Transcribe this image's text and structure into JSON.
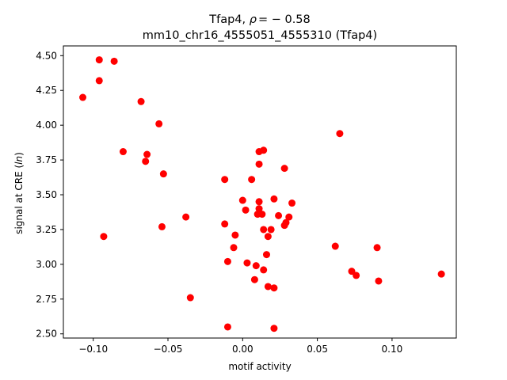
{
  "chart_data": {
    "type": "scatter",
    "title_line1_prefix": "Tfap4, ",
    "title_line1_rho_symbol": "ρ",
    "title_line1_rho_value": "= − 0.58",
    "title_line2": "mm10_chr16_4555051_4555310 (Tfap4)",
    "xlabel": "motif activity",
    "ylabel_prefix": "signal at CRE (",
    "ylabel_italic": "ln",
    "ylabel_suffix": ")",
    "xlim": [
      -0.12,
      0.143
    ],
    "ylim": [
      2.47,
      4.57
    ],
    "xticks": [
      -0.1,
      -0.05,
      0.0,
      0.05,
      0.1
    ],
    "xtick_labels": [
      "−0.10",
      "−0.05",
      "0.00",
      "0.05",
      "0.10"
    ],
    "yticks": [
      2.5,
      2.75,
      3.0,
      3.25,
      3.5,
      3.75,
      4.0,
      4.25,
      4.5
    ],
    "ytick_labels": [
      "2.50",
      "2.75",
      "3.00",
      "3.25",
      "3.50",
      "3.75",
      "4.00",
      "4.25",
      "4.50"
    ],
    "marker_color": "#ff0000",
    "grid": false,
    "points": [
      {
        "x": -0.096,
        "y": 4.47
      },
      {
        "x": -0.086,
        "y": 4.46
      },
      {
        "x": -0.096,
        "y": 4.32
      },
      {
        "x": -0.107,
        "y": 4.2
      },
      {
        "x": -0.068,
        "y": 4.17
      },
      {
        "x": -0.056,
        "y": 4.01
      },
      {
        "x": -0.08,
        "y": 3.81
      },
      {
        "x": -0.064,
        "y": 3.79
      },
      {
        "x": -0.065,
        "y": 3.74
      },
      {
        "x": -0.053,
        "y": 3.65
      },
      {
        "x": -0.093,
        "y": 3.2
      },
      {
        "x": -0.054,
        "y": 3.27
      },
      {
        "x": -0.038,
        "y": 3.34
      },
      {
        "x": -0.035,
        "y": 2.76
      },
      {
        "x": 0.065,
        "y": 3.94
      },
      {
        "x": 0.011,
        "y": 3.81
      },
      {
        "x": 0.014,
        "y": 3.82
      },
      {
        "x": 0.011,
        "y": 3.72
      },
      {
        "x": 0.028,
        "y": 3.69
      },
      {
        "x": -0.012,
        "y": 3.61
      },
      {
        "x": 0.006,
        "y": 3.61
      },
      {
        "x": 0.0,
        "y": 3.46
      },
      {
        "x": 0.011,
        "y": 3.45
      },
      {
        "x": 0.021,
        "y": 3.47
      },
      {
        "x": 0.033,
        "y": 3.44
      },
      {
        "x": 0.002,
        "y": 3.39
      },
      {
        "x": 0.011,
        "y": 3.4
      },
      {
        "x": 0.01,
        "y": 3.36
      },
      {
        "x": 0.013,
        "y": 3.36
      },
      {
        "x": 0.024,
        "y": 3.35
      },
      {
        "x": 0.031,
        "y": 3.34
      },
      {
        "x": -0.012,
        "y": 3.29
      },
      {
        "x": 0.028,
        "y": 3.28
      },
      {
        "x": 0.029,
        "y": 3.3
      },
      {
        "x": 0.014,
        "y": 3.25
      },
      {
        "x": 0.019,
        "y": 3.25
      },
      {
        "x": -0.005,
        "y": 3.21
      },
      {
        "x": 0.017,
        "y": 3.2
      },
      {
        "x": 0.062,
        "y": 3.13
      },
      {
        "x": 0.09,
        "y": 3.12
      },
      {
        "x": -0.006,
        "y": 3.12
      },
      {
        "x": 0.016,
        "y": 3.07
      },
      {
        "x": -0.01,
        "y": 3.02
      },
      {
        "x": 0.003,
        "y": 3.01
      },
      {
        "x": 0.009,
        "y": 2.99
      },
      {
        "x": 0.014,
        "y": 2.96
      },
      {
        "x": 0.073,
        "y": 2.95
      },
      {
        "x": 0.076,
        "y": 2.92
      },
      {
        "x": 0.133,
        "y": 2.93
      },
      {
        "x": 0.008,
        "y": 2.89
      },
      {
        "x": 0.091,
        "y": 2.88
      },
      {
        "x": 0.017,
        "y": 2.84
      },
      {
        "x": 0.021,
        "y": 2.83
      },
      {
        "x": -0.01,
        "y": 2.55
      },
      {
        "x": 0.021,
        "y": 2.54
      }
    ]
  }
}
